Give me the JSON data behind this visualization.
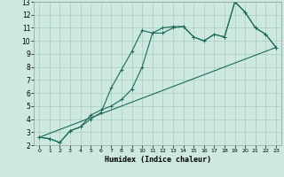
{
  "xlabel": "Humidex (Indice chaleur)",
  "ylabel": "",
  "bg_color": "#cce8e0",
  "grid_color": "#aaccbb",
  "line_color": "#1a6b58",
  "xlim": [
    -0.5,
    23.5
  ],
  "ylim": [
    2,
    13
  ],
  "xticks": [
    0,
    1,
    2,
    3,
    4,
    5,
    6,
    7,
    8,
    9,
    10,
    11,
    12,
    13,
    14,
    15,
    16,
    17,
    18,
    19,
    20,
    21,
    22,
    23
  ],
  "yticks": [
    2,
    3,
    4,
    5,
    6,
    7,
    8,
    9,
    10,
    11,
    12,
    13
  ],
  "line1_x": [
    0,
    1,
    2,
    3,
    4,
    5,
    6,
    7,
    8,
    9,
    10,
    11,
    12,
    13,
    14,
    15,
    16,
    17,
    18,
    19,
    20,
    21,
    22,
    23
  ],
  "line1_y": [
    2.6,
    2.5,
    2.2,
    3.1,
    3.4,
    4.3,
    4.7,
    5.0,
    5.5,
    6.3,
    8.0,
    10.6,
    10.6,
    11.0,
    11.1,
    10.3,
    10.0,
    10.5,
    10.3,
    13.0,
    12.2,
    11.0,
    10.5,
    9.5
  ],
  "line2_x": [
    0,
    1,
    2,
    3,
    4,
    5,
    6,
    7,
    8,
    9,
    10,
    11,
    12,
    13,
    14,
    15,
    16,
    17,
    18,
    19,
    20,
    21,
    22,
    23
  ],
  "line2_y": [
    2.6,
    2.5,
    2.2,
    3.1,
    3.4,
    4.0,
    4.5,
    6.4,
    7.8,
    9.2,
    10.8,
    10.6,
    11.0,
    11.1,
    11.1,
    10.3,
    10.0,
    10.5,
    10.3,
    13.0,
    12.2,
    11.0,
    10.5,
    9.5
  ],
  "line3_x": [
    0,
    23
  ],
  "line3_y": [
    2.6,
    9.5
  ],
  "marker": "+"
}
